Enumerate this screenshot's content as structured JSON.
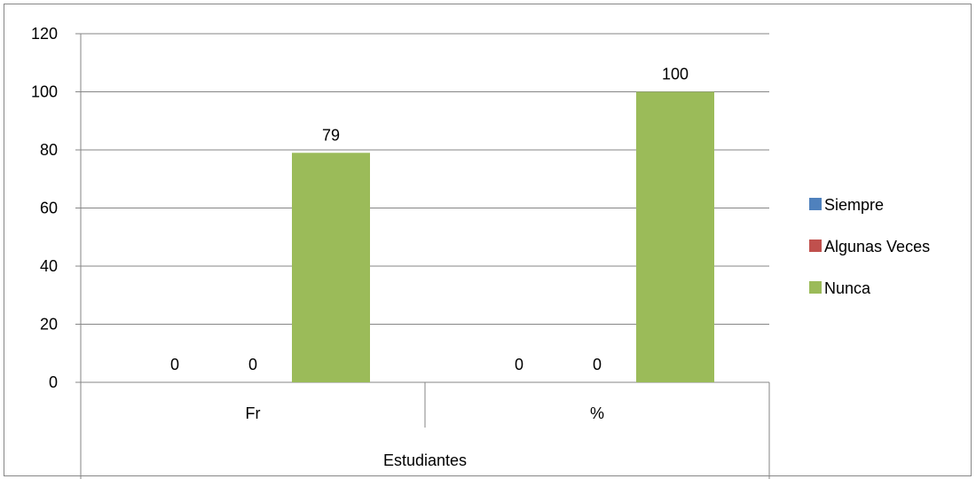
{
  "chart_data": {
    "type": "bar",
    "group_label": "Estudiantes",
    "categories": [
      "Fr",
      "%"
    ],
    "series": [
      {
        "name": "Siempre",
        "values": [
          0,
          0
        ],
        "color": "#4F81BD"
      },
      {
        "name": "Algunas Veces",
        "values": [
          0,
          0
        ],
        "color": "#C0504D"
      },
      {
        "name": "Nunca",
        "values": [
          79,
          100
        ],
        "color": "#9BBB59"
      }
    ],
    "ylim": [
      0,
      120
    ],
    "yticks": [
      0,
      20,
      40,
      60,
      80,
      100,
      120
    ],
    "grid": true,
    "legend": "right"
  }
}
